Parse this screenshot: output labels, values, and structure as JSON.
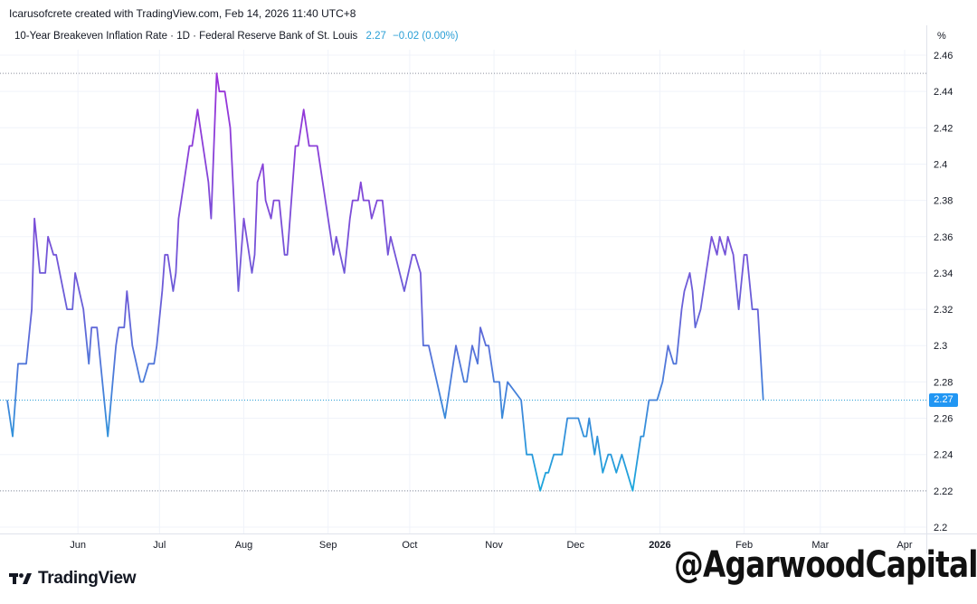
{
  "header": {
    "attribution": "Icarusofcrete created with TradingView.com, Feb 14, 2026 11:40 UTC+8",
    "series_title": "10-Year Breakeven Inflation Rate · 1D · Federal Reserve Bank of St. Louis",
    "last_value": "2.27",
    "change": "−0.02 (0.00%)",
    "unit": "%"
  },
  "price_tag": "2.27",
  "footer": {
    "brand": "TradingView",
    "watermark": "@AgarwoodCapital"
  },
  "colors": {
    "line_start": "#9b30d9",
    "line_mid": "#6a5fd8",
    "line_end": "#1aa8dc",
    "price_tag": "#2196f3"
  },
  "chart_data": {
    "type": "line",
    "title": "10-Year Breakeven Inflation Rate",
    "ylabel": "%",
    "xlabel": "",
    "ylim": [
      2.2,
      2.46
    ],
    "y_ticks": [
      "2.46",
      "2.44",
      "2.42",
      "2.4",
      "2.38",
      "2.36",
      "2.34",
      "2.32",
      "2.3",
      "2.28",
      "2.26",
      "2.24",
      "2.22",
      "2.2"
    ],
    "x_ticks": [
      {
        "label": "Jun",
        "day": 26
      },
      {
        "label": "Jul",
        "day": 56
      },
      {
        "label": "Aug",
        "day": 87
      },
      {
        "label": "Sep",
        "day": 118
      },
      {
        "label": "Oct",
        "day": 148
      },
      {
        "label": "Nov",
        "day": 179
      },
      {
        "label": "Dec",
        "day": 209
      },
      {
        "label": "2026",
        "day": 240,
        "bold": true
      },
      {
        "label": "Feb",
        "day": 271
      },
      {
        "label": "Mar",
        "day": 299
      },
      {
        "label": "Apr",
        "day": 330
      }
    ],
    "x_range_days": [
      0,
      334
    ],
    "reference_lines": {
      "high": 2.45,
      "low": 2.22,
      "last": 2.27
    },
    "series": [
      {
        "name": "10-Year Breakeven Inflation Rate",
        "points": [
          [
            0,
            2.27
          ],
          [
            2,
            2.25
          ],
          [
            4,
            2.29
          ],
          [
            7,
            2.29
          ],
          [
            9,
            2.32
          ],
          [
            10,
            2.37
          ],
          [
            12,
            2.34
          ],
          [
            14,
            2.34
          ],
          [
            15,
            2.36
          ],
          [
            17,
            2.35
          ],
          [
            18,
            2.35
          ],
          [
            22,
            2.32
          ],
          [
            24,
            2.32
          ],
          [
            25,
            2.34
          ],
          [
            28,
            2.32
          ],
          [
            30,
            2.29
          ],
          [
            31,
            2.31
          ],
          [
            33,
            2.31
          ],
          [
            37,
            2.25
          ],
          [
            40,
            2.3
          ],
          [
            41,
            2.31
          ],
          [
            43,
            2.31
          ],
          [
            44,
            2.33
          ],
          [
            46,
            2.3
          ],
          [
            49,
            2.28
          ],
          [
            50,
            2.28
          ],
          [
            52,
            2.29
          ],
          [
            54,
            2.29
          ],
          [
            55,
            2.3
          ],
          [
            57,
            2.33
          ],
          [
            58,
            2.35
          ],
          [
            59,
            2.35
          ],
          [
            61,
            2.33
          ],
          [
            62,
            2.34
          ],
          [
            63,
            2.37
          ],
          [
            67,
            2.41
          ],
          [
            68,
            2.41
          ],
          [
            70,
            2.43
          ],
          [
            72,
            2.41
          ],
          [
            74,
            2.39
          ],
          [
            75,
            2.37
          ],
          [
            77,
            2.45
          ],
          [
            78,
            2.44
          ],
          [
            80,
            2.44
          ],
          [
            82,
            2.42
          ],
          [
            85,
            2.33
          ],
          [
            87,
            2.37
          ],
          [
            88,
            2.36
          ],
          [
            90,
            2.34
          ],
          [
            91,
            2.35
          ],
          [
            92,
            2.39
          ],
          [
            94,
            2.4
          ],
          [
            95,
            2.38
          ],
          [
            97,
            2.37
          ],
          [
            98,
            2.38
          ],
          [
            100,
            2.38
          ],
          [
            102,
            2.35
          ],
          [
            103,
            2.35
          ],
          [
            106,
            2.41
          ],
          [
            107,
            2.41
          ],
          [
            109,
            2.43
          ],
          [
            111,
            2.41
          ],
          [
            114,
            2.41
          ],
          [
            116,
            2.39
          ],
          [
            118,
            2.37
          ],
          [
            120,
            2.35
          ],
          [
            121,
            2.36
          ],
          [
            124,
            2.34
          ],
          [
            126,
            2.37
          ],
          [
            127,
            2.38
          ],
          [
            129,
            2.38
          ],
          [
            130,
            2.39
          ],
          [
            131,
            2.38
          ],
          [
            133,
            2.38
          ],
          [
            134,
            2.37
          ],
          [
            136,
            2.38
          ],
          [
            138,
            2.38
          ],
          [
            140,
            2.35
          ],
          [
            141,
            2.36
          ],
          [
            146,
            2.33
          ],
          [
            149,
            2.35
          ],
          [
            150,
            2.35
          ],
          [
            152,
            2.34
          ],
          [
            153,
            2.3
          ],
          [
            155,
            2.3
          ],
          [
            161,
            2.26
          ],
          [
            163,
            2.28
          ],
          [
            165,
            2.3
          ],
          [
            168,
            2.28
          ],
          [
            169,
            2.28
          ],
          [
            171,
            2.3
          ],
          [
            173,
            2.29
          ],
          [
            174,
            2.31
          ],
          [
            176,
            2.3
          ],
          [
            177,
            2.3
          ],
          [
            179,
            2.28
          ],
          [
            181,
            2.28
          ],
          [
            182,
            2.26
          ],
          [
            184,
            2.28
          ],
          [
            189,
            2.27
          ],
          [
            191,
            2.24
          ],
          [
            193,
            2.24
          ],
          [
            196,
            2.22
          ],
          [
            198,
            2.23
          ],
          [
            199,
            2.23
          ],
          [
            201,
            2.24
          ],
          [
            204,
            2.24
          ],
          [
            206,
            2.26
          ],
          [
            210,
            2.26
          ],
          [
            212,
            2.25
          ],
          [
            213,
            2.25
          ],
          [
            214,
            2.26
          ],
          [
            216,
            2.24
          ],
          [
            217,
            2.25
          ],
          [
            219,
            2.23
          ],
          [
            221,
            2.24
          ],
          [
            222,
            2.24
          ],
          [
            224,
            2.23
          ],
          [
            226,
            2.24
          ],
          [
            228,
            2.23
          ],
          [
            230,
            2.22
          ],
          [
            232,
            2.24
          ],
          [
            233,
            2.25
          ],
          [
            234,
            2.25
          ],
          [
            236,
            2.27
          ],
          [
            237,
            2.27
          ],
          [
            239,
            2.27
          ],
          [
            241,
            2.28
          ],
          [
            243,
            2.3
          ],
          [
            245,
            2.29
          ],
          [
            246,
            2.29
          ],
          [
            248,
            2.32
          ],
          [
            249,
            2.33
          ],
          [
            251,
            2.34
          ],
          [
            252,
            2.33
          ],
          [
            253,
            2.31
          ],
          [
            255,
            2.32
          ],
          [
            257,
            2.34
          ],
          [
            259,
            2.36
          ],
          [
            261,
            2.35
          ],
          [
            262,
            2.36
          ],
          [
            264,
            2.35
          ],
          [
            265,
            2.36
          ],
          [
            267,
            2.35
          ],
          [
            269,
            2.32
          ],
          [
            271,
            2.35
          ],
          [
            272,
            2.35
          ],
          [
            274,
            2.32
          ],
          [
            276,
            2.32
          ],
          [
            278,
            2.27
          ]
        ]
      }
    ]
  }
}
